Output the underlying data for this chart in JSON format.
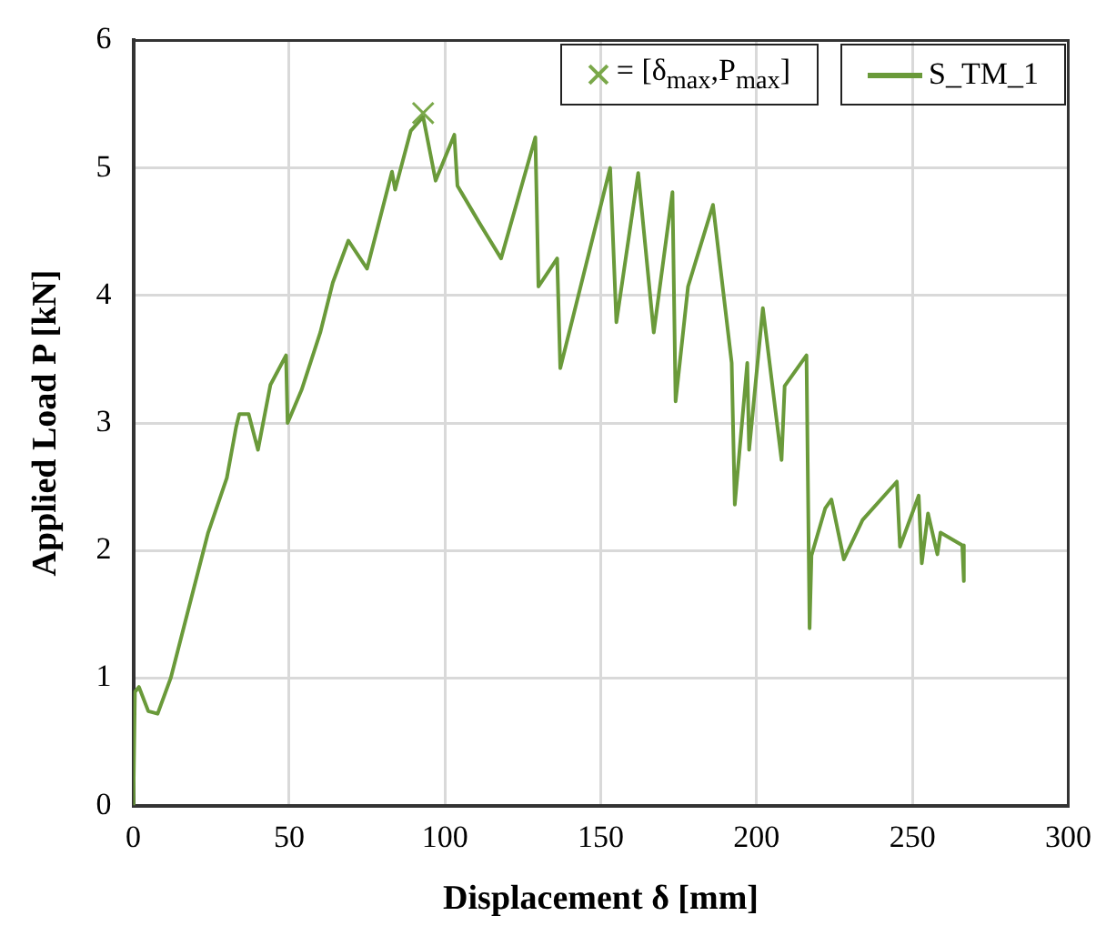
{
  "chart_data": {
    "type": "line",
    "xlabel": "Displacement δ [mm]",
    "ylabel": "Applied Load P [kN]",
    "xlim": [
      0,
      300
    ],
    "xticks": [
      0,
      50,
      100,
      150,
      200,
      250,
      300
    ],
    "ylim": [
      0,
      6
    ],
    "yticks": [
      0,
      1,
      2,
      3,
      4,
      5,
      6
    ],
    "grid": true,
    "legend": "top right",
    "marker": "none",
    "line_style": "solid",
    "series": [
      {
        "name": "S_TM_1",
        "color": "#6a9a3a",
        "x": [
          0,
          0.5,
          1.8,
          4.8,
          7.8,
          12,
          18,
          24,
          30,
          33,
          34,
          37,
          40,
          44,
          49,
          49.5,
          54,
          60,
          64,
          69,
          75,
          83,
          84,
          89,
          93,
          97,
          103,
          104,
          111,
          118,
          129,
          130,
          136,
          137,
          153,
          155,
          162,
          167,
          173,
          174,
          178,
          186,
          192,
          193,
          197,
          197.6,
          202,
          208,
          209,
          216,
          217,
          217.6,
          222,
          224,
          228,
          234,
          245,
          246,
          252,
          253,
          255,
          258,
          259,
          266,
          266.5
        ],
        "values": [
          0,
          0.89,
          0.93,
          0.74,
          0.72,
          1.0,
          1.57,
          2.14,
          2.57,
          2.97,
          3.07,
          3.07,
          2.79,
          3.3,
          3.53,
          3.0,
          3.26,
          3.71,
          4.1,
          4.43,
          4.21,
          4.97,
          4.83,
          5.29,
          5.4,
          4.9,
          5.26,
          4.86,
          4.57,
          4.29,
          5.24,
          4.07,
          4.29,
          3.43,
          5.0,
          3.79,
          4.96,
          3.71,
          4.81,
          3.17,
          4.07,
          4.71,
          3.47,
          2.36,
          3.47,
          2.79,
          3.9,
          2.71,
          3.29,
          3.53,
          1.39,
          1.96,
          2.33,
          2.4,
          1.93,
          2.24,
          2.54,
          2.03,
          2.43,
          1.9,
          2.29,
          1.97,
          2.14,
          2.04,
          1.76
        ]
      },
      {
        "name": "= [δ$_{max}$,P$_{max}$]",
        "type": "scatter",
        "marker": "cross",
        "color": "#7aa84a",
        "x": [
          93
        ],
        "values": [
          5.43
        ]
      }
    ]
  }
}
